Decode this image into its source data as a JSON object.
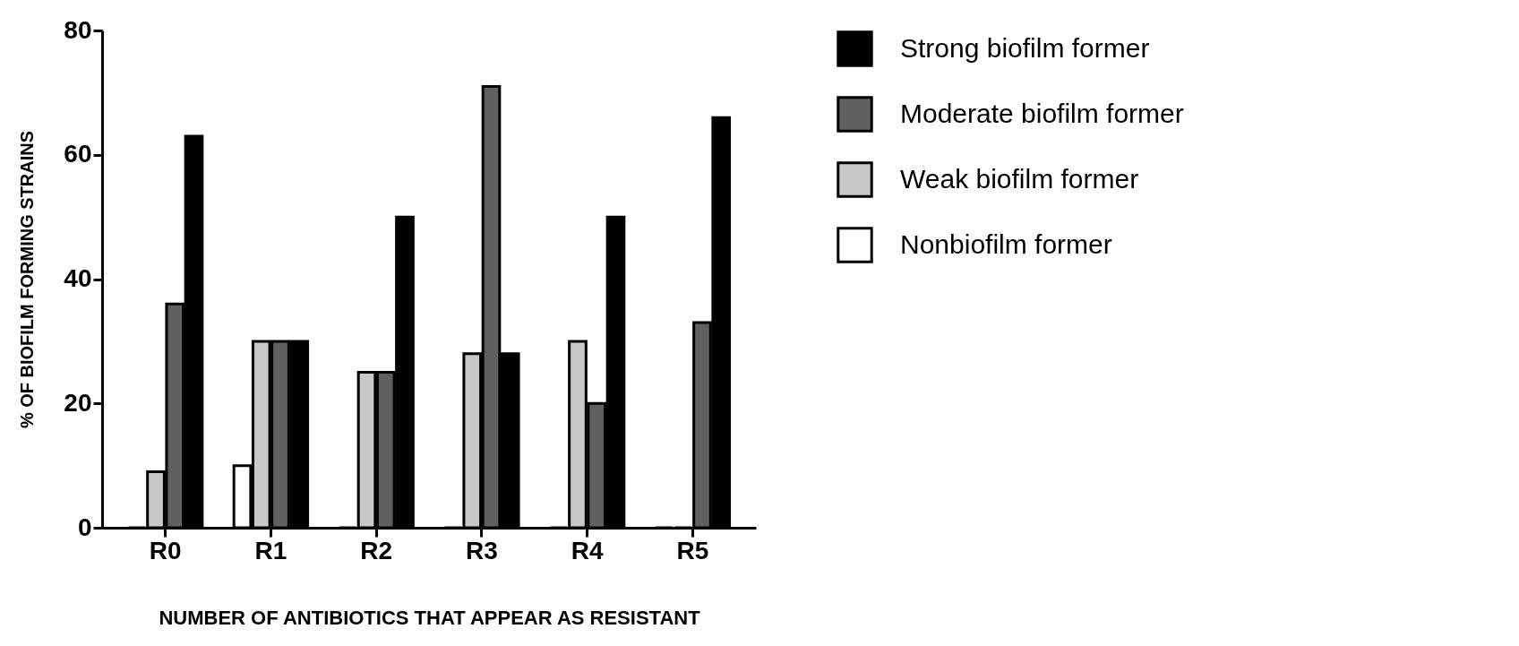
{
  "chart_data": {
    "type": "bar",
    "xlabel": "NUMBER OF ANTIBIOTICS THAT APPEAR AS RESISTANT",
    "ylabel": "% OF BIOFILM FORMING STRAINS",
    "categories": [
      "R0",
      "R1",
      "R2",
      "R3",
      "R4",
      "R5"
    ],
    "series": [
      {
        "name": "Nonbiofilm former",
        "color": "#ffffff",
        "values": [
          0,
          10,
          0,
          0,
          0,
          0
        ]
      },
      {
        "name": "Weak biofilm former",
        "color": "#c8c8c8",
        "values": [
          9,
          30,
          25,
          28,
          30,
          0
        ]
      },
      {
        "name": "Moderate biofilm former",
        "color": "#606060",
        "values": [
          36,
          30,
          25,
          71,
          20,
          33
        ]
      },
      {
        "name": "Strong biofilm former",
        "color": "#000000",
        "values": [
          63,
          30,
          50,
          28,
          50,
          66
        ]
      }
    ],
    "ylim": [
      0,
      80
    ],
    "yticks": [
      0,
      20,
      40,
      60,
      80
    ],
    "grid": false,
    "legend": "top right"
  }
}
